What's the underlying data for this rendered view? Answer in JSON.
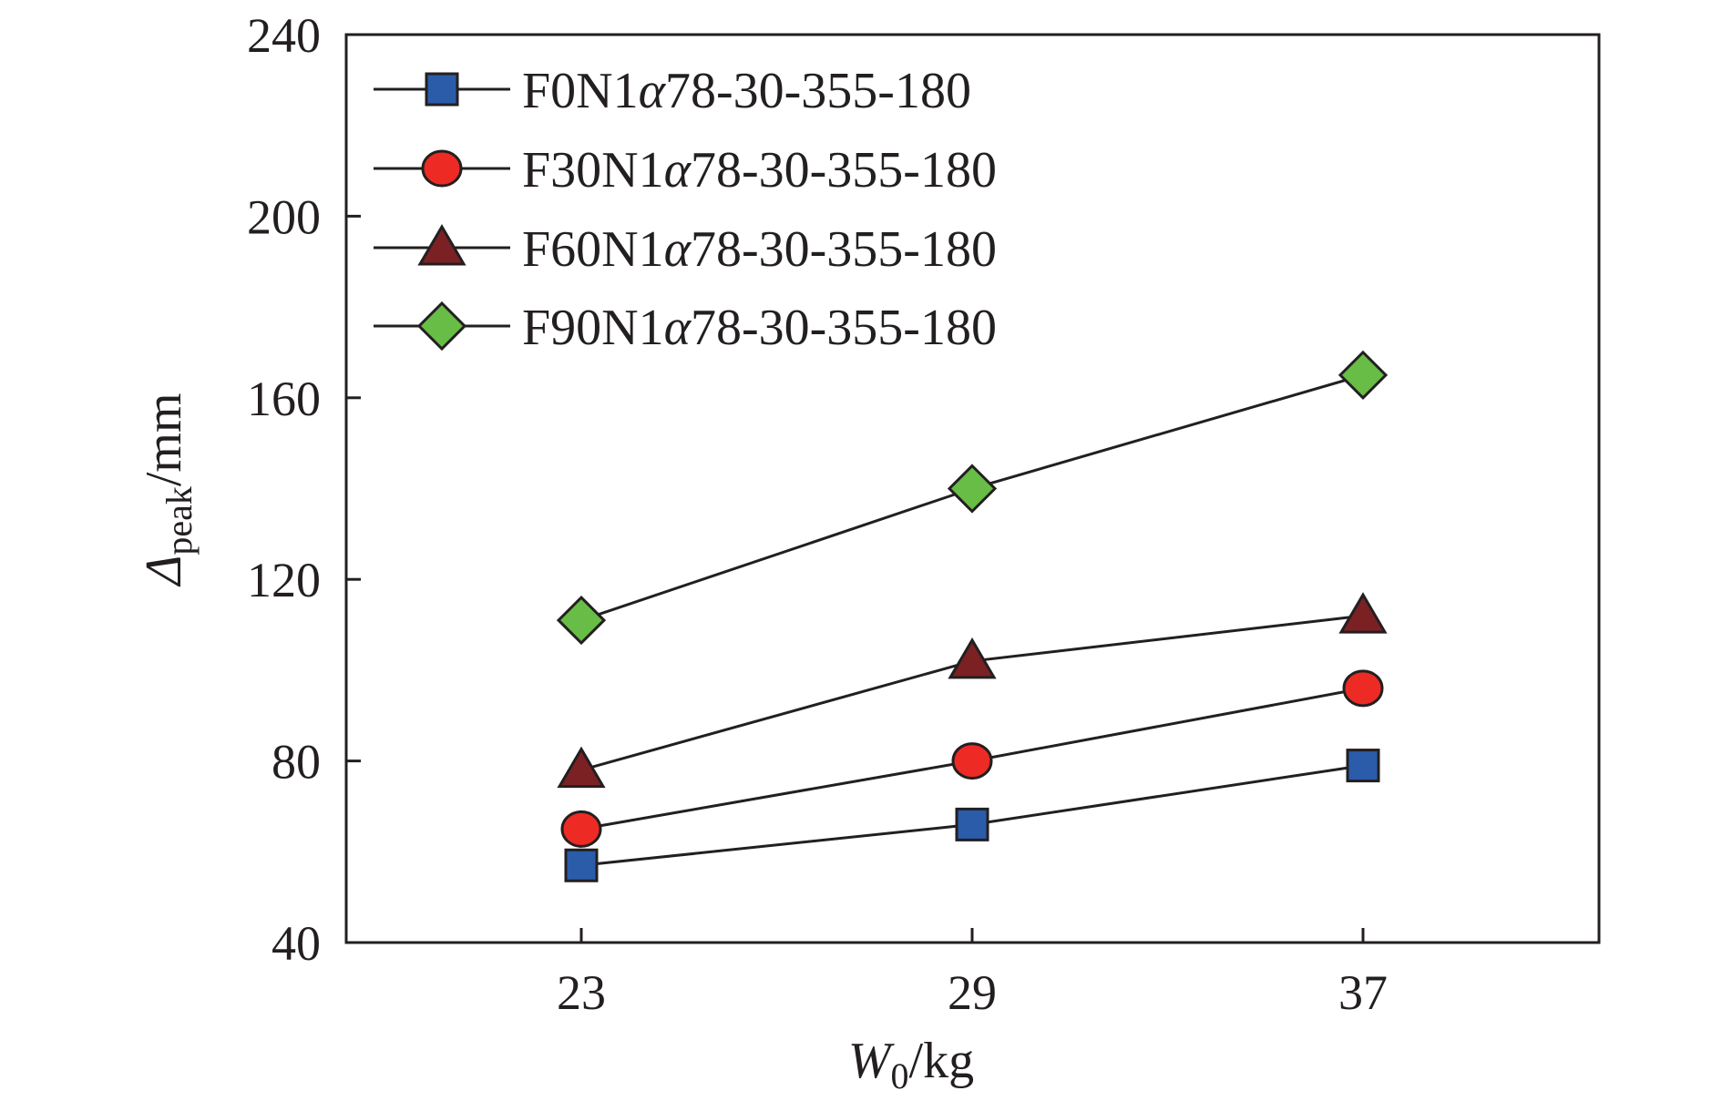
{
  "chart_data": {
    "type": "line",
    "x_label": {
      "var": "W",
      "sub": "0",
      "unit": "/kg"
    },
    "y_label": {
      "var": "Δ",
      "sub": "peak",
      "unit": "/mm"
    },
    "x": [
      "23",
      "29",
      "37"
    ],
    "ylim": [
      40,
      240
    ],
    "y_ticks": [
      "40",
      "80",
      "120",
      "160",
      "200",
      "240"
    ],
    "grid": false,
    "legend_position": "top-left",
    "series": [
      {
        "name": "F0N1α78-30-355-180",
        "name_parts": [
          "F0N1",
          "α",
          "78-30-355-180"
        ],
        "marker": "square",
        "color": "#2a5caa",
        "values": [
          57,
          66,
          79
        ]
      },
      {
        "name": "F30N1α78-30-355-180",
        "name_parts": [
          "F30N1",
          "α",
          "78-30-355-180"
        ],
        "marker": "circle",
        "color": "#ee2a24",
        "values": [
          65,
          80,
          96
        ]
      },
      {
        "name": "F60N1α78-30-355-180",
        "name_parts": [
          "F60N1",
          "α",
          "78-30-355-180"
        ],
        "marker": "triangle",
        "color": "#7b2124",
        "values": [
          78,
          102,
          112
        ]
      },
      {
        "name": "F90N1α78-30-355-180",
        "name_parts": [
          "F90N1",
          "α",
          "78-30-355-180"
        ],
        "marker": "diamond",
        "color": "#67bd45",
        "values": [
          111,
          140,
          165
        ]
      }
    ]
  }
}
